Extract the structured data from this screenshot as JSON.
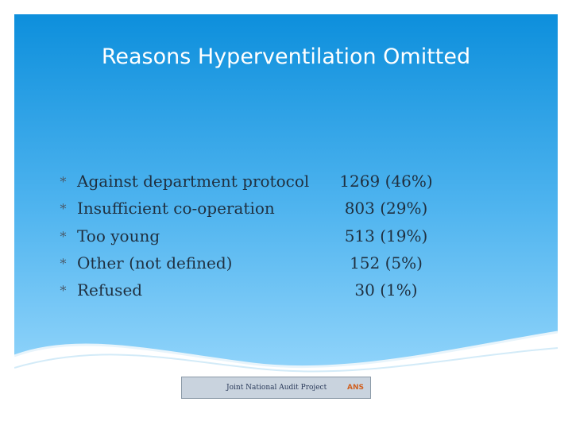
{
  "header": {
    "title": "Reasons Hyperventilation Omitted"
  },
  "items": [
    {
      "label": "Against department protocol",
      "value": "1269 (46%)"
    },
    {
      "label": "Insufficient co-operation",
      "value": "803 (29%)"
    },
    {
      "label": "Too young",
      "value": "513 (19%)"
    },
    {
      "label": "Other (not defined)",
      "value": "152 (5%)"
    },
    {
      "label": "Refused",
      "value": "30 (1%)"
    }
  ],
  "footer": {
    "logo_text": "Joint National Audit Project",
    "logo_mark": "ANS"
  }
}
